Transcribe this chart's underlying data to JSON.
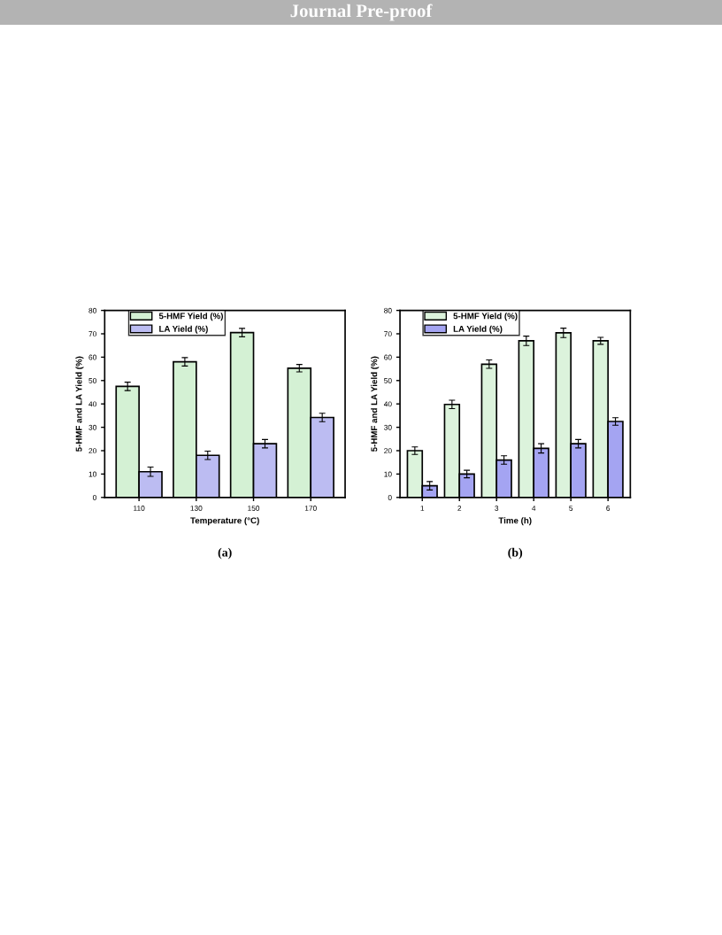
{
  "chart_data": [
    {
      "type": "bar",
      "xlabel": "Temperature (°C)",
      "ylabel": "5-HMF and LA Yield (%)",
      "categories": [
        "110",
        "130",
        "150",
        "170"
      ],
      "series": [
        {
          "name": "5-HMF Yield (%)",
          "color": "#d4f1d4",
          "values": [
            47.5,
            58,
            70.5,
            55.3
          ],
          "errors": [
            1.8,
            1.8,
            1.8,
            1.6
          ]
        },
        {
          "name": "LA Yield (%)",
          "color": "#bcbcf2",
          "values": [
            11,
            18,
            23,
            34.2
          ],
          "errors": [
            2,
            1.8,
            1.8,
            1.8
          ]
        }
      ],
      "ylim": [
        0,
        80
      ],
      "yticks": [
        0,
        10,
        20,
        30,
        40,
        50,
        60,
        70,
        80
      ],
      "grid": false,
      "legend": "top left",
      "annotations": [
        "Journal Pre-proof",
        "(a)"
      ]
    },
    {
      "type": "bar",
      "xlabel": "Time (h)",
      "ylabel": "5-HMF and LA Yield (%)",
      "categories": [
        "1",
        "2",
        "3",
        "4",
        "5",
        "6"
      ],
      "series": [
        {
          "name": "5-HMF Yield (%)",
          "color": "#dcf3dc",
          "values": [
            20,
            39.8,
            57,
            67,
            70.4,
            67
          ],
          "errors": [
            1.6,
            1.8,
            1.8,
            2,
            2,
            1.5
          ]
        },
        {
          "name": "LA Yield (%)",
          "color": "#a4a4f2",
          "values": [
            5,
            10,
            16,
            21,
            23,
            32.5
          ],
          "errors": [
            1.8,
            1.6,
            1.8,
            2,
            1.8,
            1.6
          ]
        }
      ],
      "ylim": [
        0,
        80
      ],
      "yticks": [
        0,
        10,
        20,
        30,
        40,
        50,
        60,
        70,
        80
      ],
      "grid": false,
      "legend": "top left",
      "annotations": [
        "(b)"
      ]
    }
  ]
}
